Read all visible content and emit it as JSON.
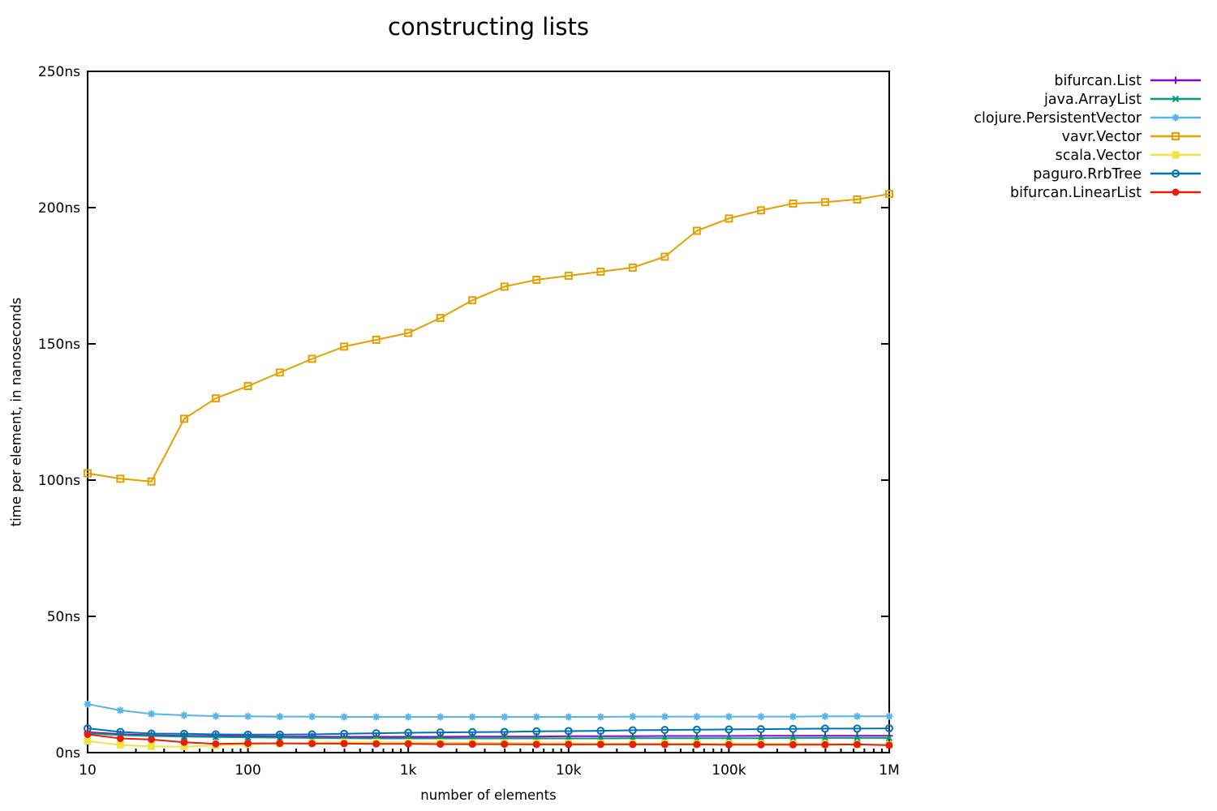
{
  "page": {
    "background": "#ffffff"
  },
  "chart_data": {
    "type": "line",
    "title": "constructing lists",
    "xlabel": "number of elements",
    "ylabel": "time per element, in nanoseconds",
    "x_scale": "log",
    "xlim": [
      10,
      1000000
    ],
    "ylim": [
      0,
      250
    ],
    "grid": false,
    "legend_position": "outside-right-top",
    "x_ticks": [
      {
        "value": 10,
        "label": "10"
      },
      {
        "value": 100,
        "label": "100"
      },
      {
        "value": 1000,
        "label": "1k"
      },
      {
        "value": 10000,
        "label": "10k"
      },
      {
        "value": 100000,
        "label": "100k"
      },
      {
        "value": 1000000,
        "label": "1M"
      }
    ],
    "x_minor_ticks_per_decade": [
      2,
      3,
      4,
      5,
      6,
      7,
      8,
      9
    ],
    "y_ticks": [
      {
        "value": 0,
        "label": "0ns"
      },
      {
        "value": 50,
        "label": "50ns"
      },
      {
        "value": 100,
        "label": "100ns"
      },
      {
        "value": 150,
        "label": "150ns"
      },
      {
        "value": 200,
        "label": "200ns"
      },
      {
        "value": 250,
        "label": "250ns"
      }
    ],
    "x": [
      10,
      16,
      25,
      40,
      63,
      100,
      158,
      251,
      398,
      631,
      1000,
      1585,
      2512,
      3981,
      6310,
      10000,
      15849,
      25119,
      39811,
      63096,
      100000,
      158489,
      251189,
      398107,
      630957,
      1000000
    ],
    "series": [
      {
        "name": "bifurcan.List",
        "color": "#9400d3",
        "marker": "plus",
        "values": [
          7.5,
          6.8,
          6.4,
          6.2,
          6.1,
          6.0,
          5.9,
          5.9,
          5.8,
          5.8,
          5.8,
          5.8,
          5.9,
          5.9,
          5.9,
          6.0,
          6.0,
          6.0,
          6.1,
          6.1,
          6.1,
          6.2,
          6.2,
          6.2,
          6.2,
          6.2
        ]
      },
      {
        "name": "java.ArrayList",
        "color": "#009e73",
        "marker": "cross",
        "values": [
          7.1,
          6.4,
          6.1,
          5.9,
          5.7,
          5.6,
          5.5,
          5.4,
          5.3,
          5.2,
          5.2,
          5.2,
          5.2,
          5.2,
          5.2,
          5.2,
          5.2,
          5.3,
          5.3,
          5.3,
          5.3,
          5.3,
          5.4,
          5.4,
          5.4,
          5.4
        ]
      },
      {
        "name": "clojure.PersistentVector",
        "color": "#56b4e9",
        "marker": "asterisk",
        "values": [
          17.8,
          15.5,
          14.2,
          13.7,
          13.4,
          13.3,
          13.2,
          13.2,
          13.1,
          13.1,
          13.1,
          13.1,
          13.1,
          13.1,
          13.1,
          13.1,
          13.1,
          13.2,
          13.2,
          13.2,
          13.2,
          13.2,
          13.2,
          13.3,
          13.3,
          13.3
        ]
      },
      {
        "name": "vavr.Vector",
        "color": "#e69f00",
        "marker": "square-open",
        "values": [
          102.5,
          100.5,
          99.5,
          122.5,
          130.0,
          134.5,
          139.5,
          144.5,
          149.0,
          151.5,
          154.0,
          159.5,
          166.0,
          171.0,
          173.5,
          175.0,
          176.5,
          178.0,
          182.0,
          191.5,
          196.0,
          199.0,
          201.5,
          202.0,
          203.0,
          205.0
        ]
      },
      {
        "name": "scala.Vector",
        "color": "#f0e442",
        "marker": "square-filled",
        "values": [
          4.3,
          2.8,
          2.3,
          2.2,
          2.6,
          3.0,
          3.3,
          3.6,
          3.8,
          3.8,
          3.7,
          3.7,
          3.6,
          3.6,
          3.5,
          3.5,
          3.4,
          3.4,
          3.4,
          3.3,
          3.3,
          3.3,
          3.2,
          3.2,
          3.0,
          2.9
        ]
      },
      {
        "name": "paguro.RrbTree",
        "color": "#0072b2",
        "marker": "circle-open",
        "values": [
          8.9,
          7.6,
          7.0,
          6.9,
          6.7,
          6.6,
          6.6,
          6.7,
          6.9,
          7.1,
          7.3,
          7.4,
          7.5,
          7.6,
          7.8,
          7.9,
          8.0,
          8.2,
          8.3,
          8.4,
          8.5,
          8.6,
          8.7,
          8.8,
          8.8,
          8.9
        ]
      },
      {
        "name": "bifurcan.LinearList",
        "color": "#e51e10",
        "marker": "circle-filled",
        "values": [
          6.7,
          5.2,
          4.8,
          3.8,
          3.2,
          3.4,
          3.4,
          3.3,
          3.3,
          3.2,
          3.2,
          3.1,
          3.1,
          3.1,
          3.0,
          3.0,
          3.0,
          3.0,
          3.0,
          3.0,
          2.9,
          2.9,
          2.9,
          2.9,
          3.0,
          2.7
        ]
      }
    ]
  }
}
